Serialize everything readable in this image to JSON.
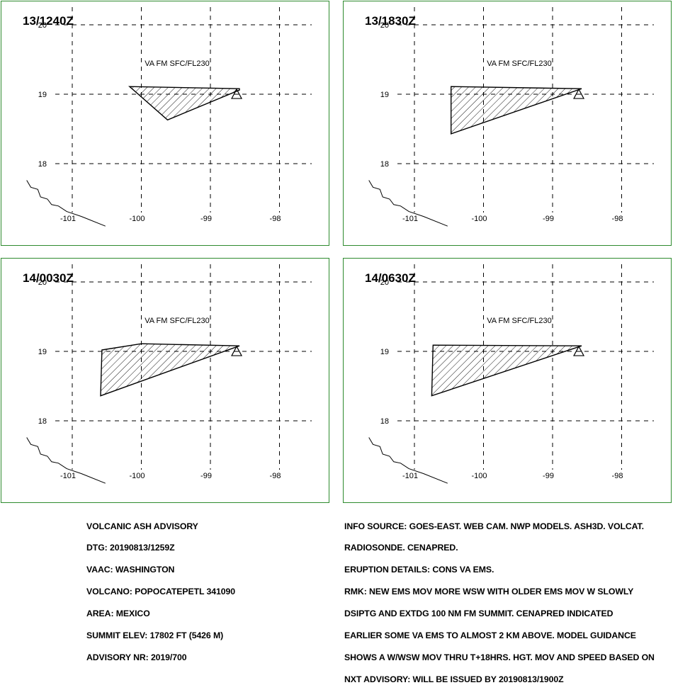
{
  "panels": [
    {
      "time": "13/1240Z",
      "level": "VA FM SFC/FL230",
      "polygon": [
        [
          -100.17,
          19.11
        ],
        [
          -99.62,
          18.63
        ],
        [
          -98.58,
          19.06
        ],
        [
          -98.58,
          19.08
        ]
      ]
    },
    {
      "time": "13/1830Z",
      "level": "VA FM SFC/FL230",
      "polygon": [
        [
          -100.47,
          19.11
        ],
        [
          -98.58,
          19.08
        ],
        [
          -100.47,
          18.43
        ]
      ]
    },
    {
      "time": "14/0030Z",
      "level": "VA FM SFC/FL230",
      "polygon": [
        [
          -100.57,
          19.02
        ],
        [
          -100.0,
          19.11
        ],
        [
          -98.58,
          19.08
        ],
        [
          -100.59,
          18.36
        ]
      ]
    },
    {
      "time": "14/0630Z",
      "level": "VA FM SFC/FL230",
      "polygon": [
        [
          -100.73,
          19.09
        ],
        [
          -98.58,
          19.08
        ],
        [
          -100.75,
          18.36
        ]
      ]
    }
  ],
  "axes": {
    "lat_labels": [
      "20",
      "19",
      "18"
    ],
    "lon_labels": [
      "-101",
      "-100",
      "-99",
      "-98"
    ],
    "lat_values": [
      20,
      19,
      18
    ],
    "lon_values": [
      -101,
      -100,
      -99,
      -98
    ]
  },
  "volcano": {
    "lon": -98.62,
    "lat": 19.02,
    "name": "POPOCATEPETL"
  },
  "coastline": [
    [
      -101.66,
      17.76
    ],
    [
      -101.6,
      17.66
    ],
    [
      -101.5,
      17.63
    ],
    [
      -101.46,
      17.52
    ],
    [
      -101.36,
      17.49
    ],
    [
      -101.3,
      17.41
    ],
    [
      -101.2,
      17.39
    ],
    [
      -101.08,
      17.31
    ],
    [
      -100.87,
      17.24
    ],
    [
      -100.52,
      17.1
    ]
  ],
  "info_left": [
    "VOLCANIC ASH ADVISORY",
    "DTG: 20190813/1259Z",
    "VAAC: WASHINGTON",
    "VOLCANO: POPOCATEPETL 341090",
    "AREA: MEXICO",
    "SUMMIT ELEV: 17802 FT (5426 M)",
    "ADVISORY NR: 2019/700"
  ],
  "info_right": [
    "INFO SOURCE: GOES-EAST. WEB CAM. NWP MODELS. ASH3D. VOLCAT.",
    "RADIOSONDE. CENAPRED.",
    "ERUPTION DETAILS: CONS VA EMS.",
    "RMK: NEW EMS MOV MORE WSW WITH OLDER EMS MOV W SLOWLY",
    "DSIPTG AND EXTDG 100 NM FM SUMMIT. CENAPRED INDICATED",
    "EARLIER SOME VA EMS TO ALMOST 2 KM ABOVE. MODEL GUIDANCE",
    "SHOWS A W/WSW MOV THRU T+18HRS. HGT. MOV AND SPEED BASED ON",
    "NXT ADVISORY: WILL BE ISSUED BY 20190813/1900Z"
  ],
  "colors": {
    "frame": "#2e8b2e",
    "ink": "#000000"
  }
}
